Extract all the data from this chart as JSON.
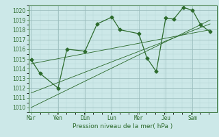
{
  "title": "Pression niveau de la mer( hPa )",
  "bg_color": "#cce8e8",
  "grid_major_color": "#99bbbb",
  "grid_minor_color": "#b8d8d8",
  "line_color": "#2d6b2d",
  "ylim": [
    1009.5,
    1020.5
  ],
  "yticks": [
    1010,
    1011,
    1012,
    1013,
    1014,
    1015,
    1016,
    1017,
    1018,
    1019,
    1020
  ],
  "day_labels": [
    "Mar",
    "Ven",
    "Dim",
    "Lun",
    "Mer",
    "Jeu",
    "Sam"
  ],
  "day_positions": [
    0,
    1,
    2,
    3,
    4,
    5,
    6
  ],
  "xlim": [
    -0.1,
    6.9
  ],
  "data_x": [
    0,
    0.33,
    1.0,
    1.33,
    2.0,
    2.45,
    3.0,
    3.3,
    4.0,
    4.3,
    4.65,
    5.0,
    5.3,
    5.65,
    6.0,
    6.3,
    6.65
  ],
  "data_y": [
    1014.9,
    1013.5,
    1012.0,
    1016.0,
    1015.8,
    1018.6,
    1019.3,
    1018.0,
    1017.6,
    1015.1,
    1013.7,
    1019.2,
    1019.1,
    1020.3,
    1020.0,
    1018.5,
    1017.8
  ],
  "trend1_x": [
    0,
    6.65
  ],
  "trend1_y": [
    1010.0,
    1019.0
  ],
  "trend2_x": [
    0,
    6.65
  ],
  "trend2_y": [
    1011.5,
    1018.6
  ],
  "trend3_x": [
    0,
    6.65
  ],
  "trend3_y": [
    1014.5,
    1018.0
  ],
  "markersize": 2.5,
  "linewidth": 0.9,
  "title_fontsize": 6.5,
  "tick_fontsize": 5.5
}
